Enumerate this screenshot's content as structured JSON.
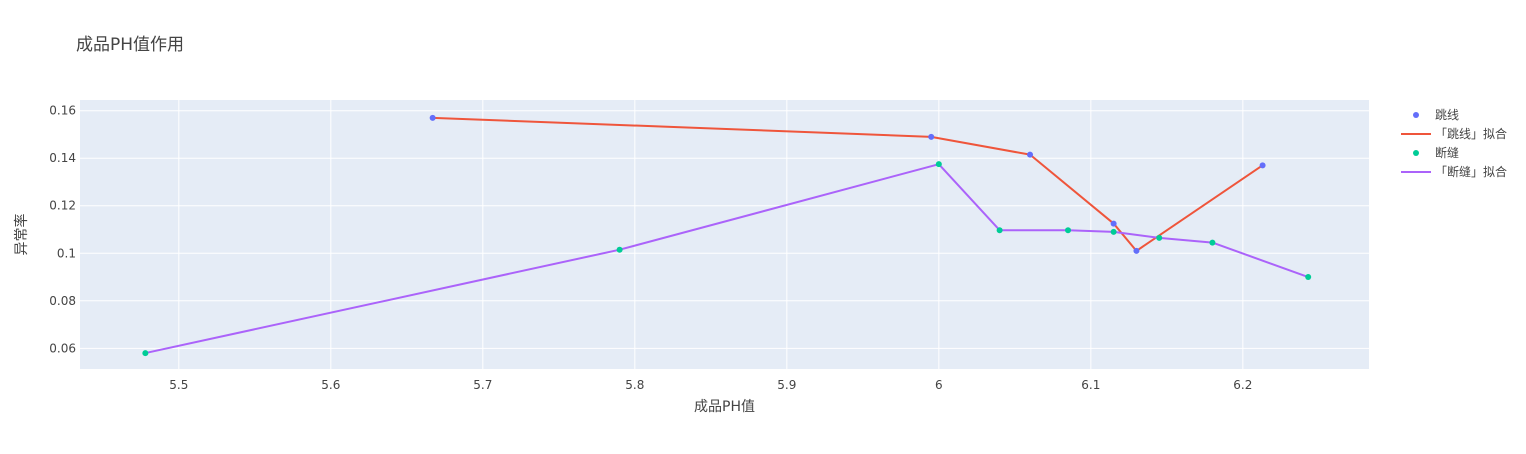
{
  "chart_data": {
    "type": "scatter",
    "title": "成品PH值作用",
    "xlabel": "成品PH值",
    "ylabel": "异常率",
    "xlim": [
      5.435,
      6.283
    ],
    "ylim": [
      0.0513,
      0.1645
    ],
    "xticks": [
      5.5,
      5.6,
      5.7,
      5.8,
      5.9,
      6.0,
      6.1,
      6.2
    ],
    "xtick_labels": [
      "5.5",
      "5.6",
      "5.7",
      "5.8",
      "5.9",
      "6",
      "6.1",
      "6.2"
    ],
    "yticks": [
      0.06,
      0.08,
      0.1,
      0.12,
      0.14,
      0.16
    ],
    "ytick_labels": [
      "0.06",
      "0.08",
      "0.1",
      "0.12",
      "0.14",
      "0.16"
    ],
    "grid": true,
    "legend_position": "top-right",
    "background": "#e5ecf6",
    "series": [
      {
        "name": "跳线",
        "mode": "markers",
        "color": "#636efa",
        "x": [
          5.667,
          5.995,
          6.06,
          6.115,
          6.13,
          6.213
        ],
        "y": [
          0.157,
          0.149,
          0.1415,
          0.1125,
          0.101,
          0.137
        ]
      },
      {
        "name": "「跳线」拟合",
        "mode": "lines",
        "color": "#ef553b",
        "x": [
          5.667,
          5.995,
          6.06,
          6.115,
          6.13,
          6.213
        ],
        "y": [
          0.157,
          0.149,
          0.1415,
          0.1125,
          0.101,
          0.137
        ]
      },
      {
        "name": "断缝",
        "mode": "markers",
        "color": "#00cc96",
        "x": [
          5.478,
          5.79,
          6.0,
          6.04,
          6.085,
          6.115,
          6.145,
          6.18,
          6.243
        ],
        "y": [
          0.058,
          0.1015,
          0.1375,
          0.1097,
          0.1097,
          0.109,
          0.1065,
          0.1045,
          0.09
        ]
      },
      {
        "name": "「断缝」拟合",
        "mode": "lines",
        "color": "#ab63fa",
        "x": [
          5.478,
          5.79,
          6.0,
          6.04,
          6.085,
          6.115,
          6.145,
          6.18,
          6.243
        ],
        "y": [
          0.058,
          0.1015,
          0.1375,
          0.1097,
          0.1097,
          0.109,
          0.1065,
          0.1045,
          0.09
        ]
      }
    ]
  }
}
